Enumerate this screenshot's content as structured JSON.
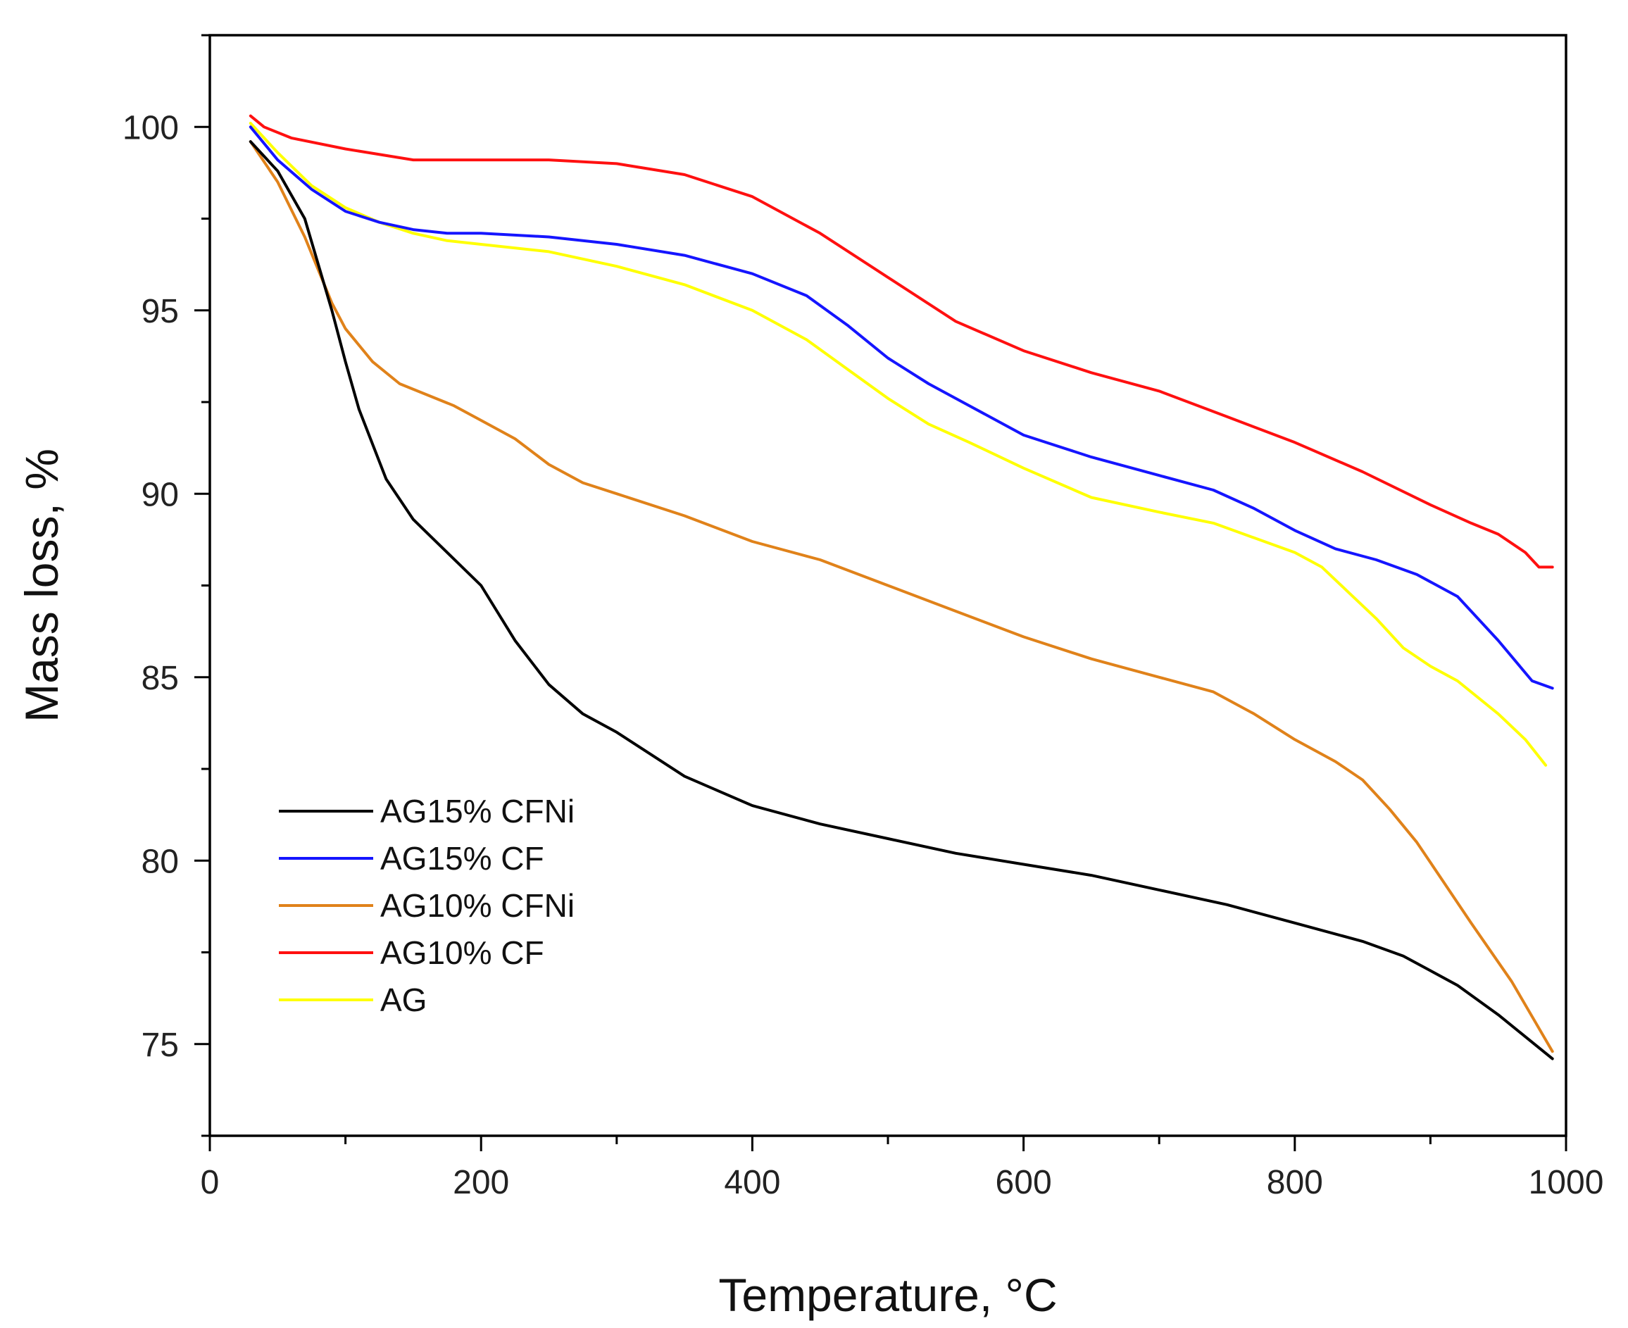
{
  "chart_data": {
    "type": "line",
    "title": "",
    "xlabel": "Temperature, °C",
    "ylabel": "Mass loss, %",
    "xlim": [
      0,
      1000
    ],
    "ylim": [
      72.5,
      102.5
    ],
    "x_major_ticks": [
      0,
      200,
      400,
      600,
      800,
      1000
    ],
    "x_minor_ticks": [
      100,
      300,
      500,
      700,
      900
    ],
    "y_major_ticks": [
      75,
      80,
      85,
      90,
      95,
      100
    ],
    "y_minor_ticks": [
      72.5,
      77.5,
      82.5,
      87.5,
      92.5,
      97.5,
      102.5
    ],
    "grid": false,
    "legend_position": "bottom-left",
    "series": [
      {
        "name": "AG15% CFNi",
        "color": "#000000",
        "x": [
          30,
          50,
          70,
          90,
          100,
          110,
          130,
          150,
          175,
          200,
          225,
          250,
          275,
          300,
          325,
          350,
          375,
          400,
          450,
          500,
          550,
          600,
          650,
          700,
          750,
          800,
          850,
          880,
          900,
          920,
          950,
          970,
          990
        ],
        "y": [
          99.6,
          98.8,
          97.5,
          95.0,
          93.6,
          92.3,
          90.4,
          89.3,
          88.4,
          87.5,
          86.0,
          84.8,
          84.0,
          83.5,
          82.9,
          82.3,
          81.9,
          81.5,
          81.0,
          80.6,
          80.2,
          79.9,
          79.6,
          79.2,
          78.8,
          78.3,
          77.8,
          77.4,
          77.0,
          76.6,
          75.8,
          75.2,
          74.6
        ]
      },
      {
        "name": "AG15% CF",
        "color": "#1515ff",
        "x": [
          30,
          50,
          75,
          100,
          125,
          150,
          175,
          200,
          250,
          300,
          350,
          400,
          440,
          470,
          500,
          530,
          560,
          600,
          650,
          700,
          740,
          770,
          800,
          830,
          860,
          890,
          920,
          950,
          975,
          990
        ],
        "y": [
          100.0,
          99.1,
          98.3,
          97.7,
          97.4,
          97.2,
          97.1,
          97.1,
          97.0,
          96.8,
          96.5,
          96.0,
          95.4,
          94.6,
          93.7,
          93.0,
          92.4,
          91.6,
          91.0,
          90.5,
          90.1,
          89.6,
          89.0,
          88.5,
          88.2,
          87.8,
          87.2,
          86.0,
          84.9,
          84.7
        ]
      },
      {
        "name": "AG10% CFNi",
        "color": "#e0821a",
        "x": [
          30,
          50,
          70,
          90,
          100,
          120,
          140,
          160,
          180,
          200,
          225,
          250,
          275,
          300,
          350,
          400,
          450,
          500,
          550,
          600,
          650,
          700,
          740,
          770,
          800,
          830,
          850,
          870,
          890,
          910,
          930,
          960,
          990
        ],
        "y": [
          99.6,
          98.5,
          97.0,
          95.2,
          94.5,
          93.6,
          93.0,
          92.7,
          92.4,
          92.0,
          91.5,
          90.8,
          90.3,
          90.0,
          89.4,
          88.7,
          88.2,
          87.5,
          86.8,
          86.1,
          85.5,
          85.0,
          84.6,
          84.0,
          83.3,
          82.7,
          82.2,
          81.4,
          80.5,
          79.4,
          78.3,
          76.7,
          74.8
        ]
      },
      {
        "name": "AG10% CF",
        "color": "#ff1010",
        "x": [
          30,
          40,
          60,
          100,
          150,
          200,
          250,
          300,
          350,
          400,
          450,
          500,
          550,
          600,
          650,
          700,
          750,
          800,
          850,
          900,
          930,
          950,
          970,
          980,
          990
        ],
        "y": [
          100.3,
          100.0,
          99.7,
          99.4,
          99.1,
          99.1,
          99.1,
          99.0,
          98.7,
          98.1,
          97.1,
          95.9,
          94.7,
          93.9,
          93.3,
          92.8,
          92.1,
          91.4,
          90.6,
          89.7,
          89.2,
          88.9,
          88.4,
          88.0,
          88.0
        ]
      },
      {
        "name": "AG",
        "color": "#ffff00",
        "x": [
          30,
          50,
          75,
          100,
          125,
          150,
          175,
          200,
          250,
          300,
          350,
          400,
          440,
          470,
          500,
          530,
          560,
          600,
          650,
          700,
          740,
          770,
          800,
          820,
          840,
          860,
          880,
          900,
          920,
          950,
          970,
          985
        ],
        "y": [
          100.1,
          99.3,
          98.4,
          97.8,
          97.4,
          97.1,
          96.9,
          96.8,
          96.6,
          96.2,
          95.7,
          95.0,
          94.2,
          93.4,
          92.6,
          91.9,
          91.4,
          90.7,
          89.9,
          89.5,
          89.2,
          88.8,
          88.4,
          88.0,
          87.3,
          86.6,
          85.8,
          85.3,
          84.9,
          84.0,
          83.3,
          82.6
        ]
      }
    ]
  }
}
